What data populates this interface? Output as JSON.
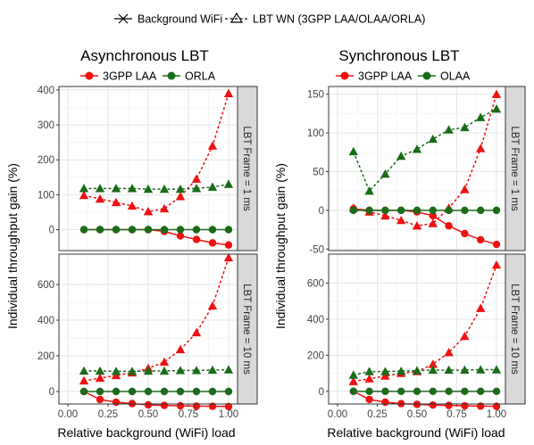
{
  "legend_top": {
    "items": [
      {
        "label": "Background WiFi",
        "marker": "cross",
        "line": "solid"
      },
      {
        "label": "LBT WN (3GPP LAA/OLAA/ORLA)",
        "marker": "triangle",
        "line": "dashed"
      }
    ]
  },
  "colors": {
    "red": "#ee1111",
    "green": "#1a6b1a",
    "panel_border": "#333333",
    "grid": "#e6e6e6",
    "strip_fill": "#d9d9d9"
  },
  "shared": {
    "ylabel": "Individual throughput gain (%)",
    "xlabel": "Relative background (WiFi) load",
    "x_ticks": [
      "0.00",
      "0.25",
      "0.50",
      "0.75",
      "1.00"
    ],
    "x_tick_values": [
      0,
      0.25,
      0.5,
      0.75,
      1.0
    ],
    "xlim": [
      0,
      1.0
    ],
    "strips": [
      "LBT Frame = 1 ms",
      "LBT Frame = 10 ms"
    ]
  },
  "chart_data": [
    {
      "type": "line",
      "title": "Asynchronous LBT",
      "legend": [
        {
          "name": "3GPP LAA",
          "color": "red"
        },
        {
          "name": "ORLA",
          "color": "green"
        }
      ],
      "facet": "LBT Frame = 1 ms",
      "x": [
        0.1,
        0.2,
        0.3,
        0.4,
        0.5,
        0.6,
        0.7,
        0.8,
        0.9,
        1.0
      ],
      "ylim": [
        -60,
        410
      ],
      "y_ticks": [
        0,
        100,
        200,
        300,
        400
      ],
      "series": [
        {
          "name": "3GPP LAA",
          "color": "red",
          "style": "dashed",
          "marker": "triangle",
          "values": [
            98,
            88,
            78,
            68,
            52,
            60,
            95,
            145,
            240,
            390
          ]
        },
        {
          "name": "3GPP LAA",
          "color": "red",
          "style": "solid",
          "marker": "circle",
          "values": [
            0,
            0,
            0,
            0,
            0,
            -5,
            -18,
            -28,
            -38,
            -44
          ]
        },
        {
          "name": "ORLA",
          "color": "green",
          "style": "dashed",
          "marker": "triangle",
          "values": [
            118,
            118,
            118,
            118,
            116,
            116,
            116,
            118,
            122,
            130
          ]
        },
        {
          "name": "ORLA",
          "color": "green",
          "style": "solid",
          "marker": "circle",
          "values": [
            0,
            0,
            0,
            0,
            0,
            0,
            0,
            0,
            0,
            0
          ]
        }
      ]
    },
    {
      "type": "line",
      "title": "Asynchronous LBT",
      "facet": "LBT Frame = 10 ms",
      "x": [
        0.1,
        0.2,
        0.3,
        0.4,
        0.5,
        0.6,
        0.7,
        0.8,
        0.9,
        1.0
      ],
      "ylim": [
        -70,
        770
      ],
      "y_ticks": [
        0,
        200,
        400,
        600
      ],
      "series": [
        {
          "name": "3GPP LAA",
          "color": "red",
          "style": "dashed",
          "marker": "triangle",
          "values": [
            60,
            75,
            90,
            105,
            130,
            165,
            235,
            330,
            480,
            750
          ]
        },
        {
          "name": "3GPP LAA",
          "color": "red",
          "style": "solid",
          "marker": "circle",
          "values": [
            0,
            -45,
            -60,
            -68,
            -75,
            -78,
            -80,
            -82,
            -83,
            -84
          ]
        },
        {
          "name": "ORLA",
          "color": "green",
          "style": "dashed",
          "marker": "triangle",
          "values": [
            115,
            115,
            113,
            113,
            115,
            115,
            118,
            118,
            120,
            122
          ]
        },
        {
          "name": "ORLA",
          "color": "green",
          "style": "solid",
          "marker": "circle",
          "values": [
            0,
            0,
            0,
            0,
            0,
            0,
            0,
            0,
            0,
            0
          ]
        }
      ]
    },
    {
      "type": "line",
      "title": "Synchronous LBT",
      "legend": [
        {
          "name": "3GPP LAA",
          "color": "red"
        },
        {
          "name": "OLAA",
          "color": "green"
        }
      ],
      "facet": "LBT Frame = 1 ms",
      "x": [
        0.1,
        0.2,
        0.3,
        0.4,
        0.5,
        0.6,
        0.7,
        0.8,
        0.9,
        1.0
      ],
      "ylim": [
        -52,
        160
      ],
      "y_ticks": [
        -50,
        0,
        50,
        100,
        150
      ],
      "series": [
        {
          "name": "3GPP LAA",
          "color": "red",
          "style": "dashed",
          "marker": "triangle",
          "values": [
            3,
            -2,
            -7,
            -13,
            -20,
            -17,
            3,
            27,
            80,
            150
          ]
        },
        {
          "name": "3GPP LAA",
          "color": "red",
          "style": "solid",
          "marker": "circle",
          "values": [
            2,
            0,
            0,
            0,
            -2,
            -7,
            -20,
            -30,
            -38,
            -44
          ]
        },
        {
          "name": "OLAA",
          "color": "green",
          "style": "dashed",
          "marker": "triangle",
          "values": [
            76,
            25,
            47,
            70,
            79,
            92,
            104,
            107,
            120,
            131
          ]
        },
        {
          "name": "OLAA",
          "color": "green",
          "style": "solid",
          "marker": "circle",
          "values": [
            0,
            0,
            0,
            0,
            0,
            0,
            0,
            0,
            0,
            0
          ]
        }
      ]
    },
    {
      "type": "line",
      "title": "Synchronous LBT",
      "facet": "LBT Frame = 10 ms",
      "x": [
        0.1,
        0.2,
        0.3,
        0.4,
        0.5,
        0.6,
        0.7,
        0.8,
        0.9,
        1.0
      ],
      "ylim": [
        -70,
        760
      ],
      "y_ticks": [
        0,
        200,
        400,
        600
      ],
      "series": [
        {
          "name": "3GPP LAA",
          "color": "red",
          "style": "dashed",
          "marker": "triangle",
          "values": [
            55,
            70,
            85,
            100,
            110,
            150,
            215,
            305,
            460,
            700
          ]
        },
        {
          "name": "3GPP LAA",
          "color": "red",
          "style": "solid",
          "marker": "circle",
          "values": [
            0,
            -45,
            -60,
            -68,
            -72,
            -76,
            -78,
            -80,
            -82,
            -83
          ]
        },
        {
          "name": "OLAA",
          "color": "green",
          "style": "dashed",
          "marker": "triangle",
          "values": [
            90,
            110,
            110,
            112,
            115,
            118,
            118,
            118,
            120,
            120
          ]
        },
        {
          "name": "OLAA",
          "color": "green",
          "style": "solid",
          "marker": "circle",
          "values": [
            0,
            0,
            0,
            0,
            0,
            0,
            0,
            0,
            0,
            0
          ]
        }
      ]
    }
  ]
}
